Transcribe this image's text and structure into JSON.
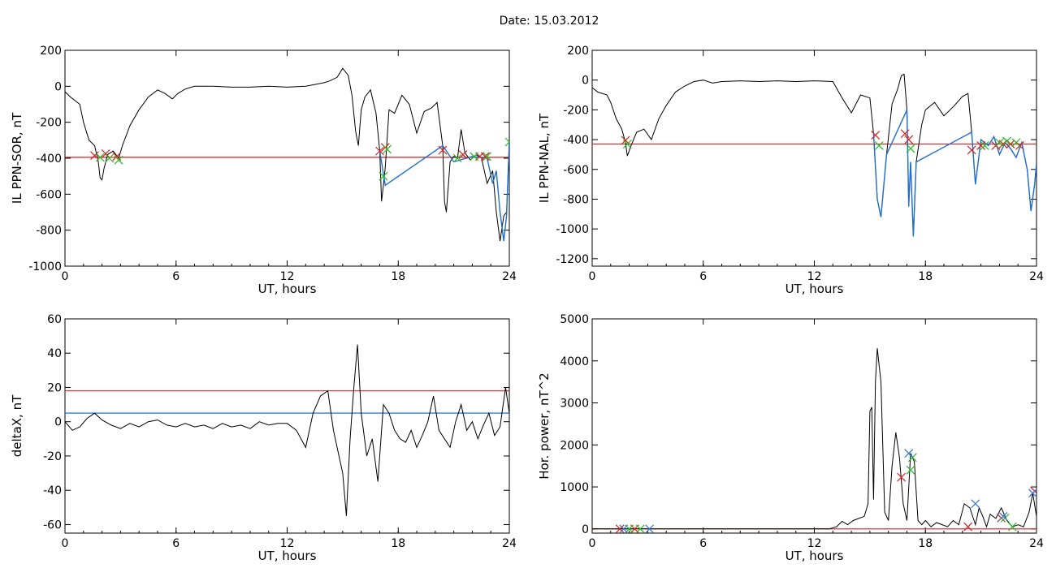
{
  "title": "Date:  15.03.2012",
  "colors": {
    "trace": "#000000",
    "threshold": "#d62020",
    "highlight": "#1f6fd0",
    "green_marker": "#22bb22",
    "blue_marker": "#3377dd"
  },
  "chart_data": [
    {
      "type": "line",
      "ylabel": "IL PPN-SOR, nT",
      "xlabel": "UT, hours",
      "xlim": [
        0,
        24
      ],
      "ylim": [
        -1000,
        200
      ],
      "xticks": [
        "0",
        "6",
        "12",
        "18",
        "24"
      ],
      "yticks": [
        "-1000",
        "-800",
        "-600",
        "-400",
        "-200",
        "0",
        "200"
      ],
      "threshold": {
        "value": -395,
        "color": "red"
      },
      "series": [
        {
          "x": [
            0,
            0.3,
            0.8,
            1.0,
            1.3,
            1.6,
            1.8,
            1.9,
            2.0,
            2.1,
            2.3,
            2.6,
            2.9,
            3.1,
            3.5,
            4.0,
            4.5,
            5.0,
            5.4,
            5.8,
            6.1,
            6.5,
            7.0,
            8.0,
            9.0,
            10.0,
            11.0,
            12.0,
            13.0,
            13.5,
            14.0,
            14.3,
            14.7,
            15.0,
            15.3,
            15.5,
            15.7,
            15.85,
            16.0,
            16.2,
            16.5,
            16.8,
            17.0,
            17.1,
            17.2,
            17.3,
            17.5,
            17.8,
            18.2,
            18.6,
            19.0,
            19.4,
            19.8,
            20.1,
            20.4,
            20.5,
            20.6,
            20.7,
            20.8,
            21.0,
            21.2,
            21.4,
            21.6,
            21.9,
            22.2,
            22.5,
            22.8,
            23.1,
            23.3,
            23.5,
            23.7,
            23.85,
            24.0
          ],
          "y": [
            -30,
            -60,
            -100,
            -200,
            -300,
            -330,
            -420,
            -510,
            -520,
            -460,
            -380,
            -360,
            -400,
            -330,
            -220,
            -130,
            -60,
            -20,
            -40,
            -70,
            -40,
            -15,
            0,
            0,
            -5,
            -5,
            0,
            -5,
            0,
            10,
            20,
            30,
            50,
            100,
            60,
            -50,
            -250,
            -330,
            -130,
            -60,
            -20,
            -150,
            -360,
            -640,
            -550,
            -450,
            -130,
            -150,
            -50,
            -100,
            -260,
            -140,
            -120,
            -90,
            -330,
            -640,
            -700,
            -560,
            -420,
            -390,
            -400,
            -240,
            -370,
            -410,
            -380,
            -400,
            -540,
            -470,
            -700,
            -860,
            -720,
            -700,
            -310
          ]
        }
      ],
      "highlight": {
        "x": [
          17.0,
          17.3,
          20.4,
          21.0,
          22.0,
          22.8,
          23.1,
          23.3,
          23.5,
          23.7,
          23.85,
          24.0
        ],
        "y": [
          -360,
          -550,
          -330,
          -420,
          -390,
          -400,
          -540,
          -470,
          -700,
          -860,
          -720,
          -310
        ]
      },
      "markers_red": {
        "x": [
          1.6,
          2.2,
          2.8,
          17.0,
          17.3,
          20.4,
          21.5,
          22.4,
          22.7
        ],
        "y": [
          -385,
          -375,
          -390,
          -360,
          -340,
          -355,
          -380,
          -390,
          -390
        ]
      },
      "markers_green": {
        "x": [
          1.9,
          2.4,
          2.9,
          17.2,
          17.4,
          21.2,
          22.1,
          22.8,
          24.0
        ],
        "y": [
          -395,
          -400,
          -410,
          -500,
          -350,
          -400,
          -390,
          -390,
          -310
        ]
      }
    },
    {
      "type": "line",
      "ylabel": "IL PPN-NAL, nT",
      "xlabel": "UT, hours",
      "xlim": [
        0,
        24
      ],
      "ylim": [
        -1250,
        200
      ],
      "xticks": [
        "0",
        "6",
        "12",
        "18",
        "24"
      ],
      "yticks": [
        "-1200",
        "-1000",
        "-800",
        "-600",
        "-400",
        "-200",
        "0",
        "200"
      ],
      "threshold": {
        "value": -430,
        "color": "red"
      },
      "series": [
        {
          "x": [
            0,
            0.3,
            0.8,
            1.0,
            1.3,
            1.6,
            1.8,
            1.9,
            2.1,
            2.4,
            2.8,
            3.2,
            3.6,
            4.0,
            4.5,
            5.0,
            5.5,
            6.0,
            6.5,
            7.0,
            8.0,
            9.0,
            10.0,
            11.0,
            12.0,
            13.0,
            13.5,
            14.0,
            14.5,
            15.0,
            15.2,
            15.4,
            15.6,
            15.9,
            16.2,
            16.5,
            16.7,
            16.85,
            17.0,
            17.1,
            17.2,
            17.35,
            17.5,
            17.8,
            18.0,
            18.5,
            19.0,
            19.5,
            20.0,
            20.3,
            20.5,
            20.7,
            21.0,
            21.4,
            21.7,
            22.0,
            22.3,
            22.6,
            22.9,
            23.2,
            23.5,
            23.7,
            23.9,
            24.0
          ],
          "y": [
            -50,
            -80,
            -100,
            -150,
            -260,
            -330,
            -420,
            -510,
            -440,
            -350,
            -330,
            -400,
            -260,
            -170,
            -80,
            -40,
            -10,
            0,
            -20,
            -10,
            -5,
            -10,
            -5,
            -10,
            -5,
            -10,
            -120,
            -220,
            -100,
            -120,
            -360,
            -800,
            -920,
            -500,
            -160,
            -60,
            30,
            40,
            -200,
            -850,
            -550,
            -1050,
            -550,
            -300,
            -200,
            -150,
            -240,
            -180,
            -110,
            -90,
            -350,
            -700,
            -400,
            -440,
            -380,
            -500,
            -420,
            -460,
            -520,
            -420,
            -600,
            -880,
            -700,
            -560
          ]
        }
      ],
      "highlight": {
        "x": [
          15.2,
          15.4,
          15.6,
          15.9,
          17.0,
          17.1,
          17.2,
          17.35,
          17.5,
          20.5,
          20.7,
          21.0,
          21.4,
          21.7,
          22.0,
          22.3,
          22.6,
          22.9,
          23.2,
          23.5,
          23.7,
          23.9,
          24.0
        ],
        "y": [
          -360,
          -800,
          -920,
          -500,
          -200,
          -850,
          -550,
          -1050,
          -550,
          -350,
          -700,
          -400,
          -440,
          -380,
          -500,
          -420,
          -460,
          -520,
          -420,
          -600,
          -880,
          -700,
          -560
        ]
      },
      "markers_red": {
        "x": [
          1.8,
          15.3,
          16.9,
          17.1,
          20.5,
          21.0,
          21.8,
          22.2,
          22.6,
          23.1
        ],
        "y": [
          -405,
          -370,
          -360,
          -400,
          -470,
          -440,
          -440,
          -430,
          -430,
          -440
        ]
      },
      "markers_green": {
        "x": [
          1.9,
          15.5,
          17.2,
          21.2,
          22.0,
          22.4,
          22.9
        ],
        "y": [
          -430,
          -440,
          -460,
          -440,
          -420,
          -410,
          -420
        ]
      }
    },
    {
      "type": "line",
      "ylabel": "deltaX, nT",
      "xlabel": "UT, hours",
      "xlim": [
        0,
        24
      ],
      "ylim": [
        -65,
        60
      ],
      "xticks": [
        "0",
        "6",
        "12",
        "18",
        "24"
      ],
      "yticks": [
        "-60",
        "-40",
        "-20",
        "0",
        "20",
        "40",
        "60"
      ],
      "threshold_red": {
        "value": 18
      },
      "threshold_blue": {
        "value": 5
      },
      "series": [
        {
          "x": [
            0,
            0.4,
            0.8,
            1.2,
            1.6,
            2.0,
            2.5,
            3.0,
            3.5,
            4.0,
            4.5,
            5.0,
            5.5,
            6.0,
            6.5,
            7.0,
            7.5,
            8.0,
            8.5,
            9.0,
            9.5,
            10.0,
            10.5,
            11.0,
            11.5,
            12.0,
            12.5,
            13.0,
            13.4,
            13.8,
            14.2,
            14.5,
            14.8,
            15.0,
            15.2,
            15.4,
            15.6,
            15.8,
            16.0,
            16.3,
            16.6,
            16.9,
            17.2,
            17.5,
            17.8,
            18.1,
            18.4,
            18.7,
            19.0,
            19.3,
            19.6,
            19.9,
            20.2,
            20.5,
            20.8,
            21.1,
            21.4,
            21.7,
            22.0,
            22.3,
            22.6,
            22.9,
            23.2,
            23.5,
            23.8,
            24.0
          ],
          "y": [
            0,
            -5,
            -3,
            2,
            5,
            1,
            -2,
            -4,
            -1,
            -3,
            0,
            1,
            -2,
            -3,
            -1,
            -3,
            -2,
            -4,
            -1,
            -3,
            -2,
            -4,
            0,
            -2,
            -1,
            -1,
            -5,
            -15,
            5,
            15,
            18,
            -5,
            -20,
            -30,
            -55,
            -10,
            20,
            45,
            5,
            -20,
            -10,
            -35,
            10,
            5,
            -5,
            -10,
            -12,
            -5,
            -15,
            -8,
            0,
            15,
            -5,
            -10,
            -15,
            0,
            10,
            -5,
            0,
            -10,
            -2,
            5,
            -8,
            -3,
            20,
            5
          ]
        }
      ]
    },
    {
      "type": "line",
      "ylabel": "Hor. power, nT^2",
      "xlabel": "UT, hours",
      "xlim": [
        0,
        24
      ],
      "ylim": [
        -100,
        5000
      ],
      "xticks": [
        "0",
        "6",
        "12",
        "18",
        "24"
      ],
      "yticks": [
        "0",
        "1000",
        "2000",
        "3000",
        "4000",
        "5000"
      ],
      "threshold": {
        "value": 0,
        "color": "red"
      },
      "series": [
        {
          "x": [
            0,
            2,
            4,
            6,
            8,
            10,
            12,
            12.8,
            13.2,
            13.5,
            13.8,
            14.1,
            14.4,
            14.7,
            14.9,
            15.0,
            15.1,
            15.2,
            15.3,
            15.4,
            15.6,
            15.8,
            16.0,
            16.2,
            16.4,
            16.6,
            16.8,
            17.0,
            17.2,
            17.4,
            17.6,
            17.8,
            18.0,
            18.3,
            18.6,
            18.9,
            19.2,
            19.5,
            19.8,
            20.1,
            20.4,
            20.7,
            20.9,
            21.1,
            21.3,
            21.5,
            21.8,
            22.1,
            22.4,
            22.7,
            23.0,
            23.3,
            23.6,
            23.8,
            24.0
          ],
          "y": [
            0,
            0,
            0,
            0,
            0,
            0,
            0,
            0,
            50,
            180,
            100,
            200,
            250,
            300,
            600,
            2800,
            2900,
            700,
            3500,
            4300,
            3500,
            400,
            200,
            1500,
            2300,
            1700,
            600,
            200,
            1800,
            1600,
            200,
            100,
            200,
            50,
            150,
            100,
            50,
            200,
            100,
            600,
            500,
            100,
            500,
            300,
            50,
            350,
            250,
            500,
            200,
            50,
            100,
            50,
            400,
            850,
            300
          ]
        }
      ],
      "markers_red": {
        "x": [
          1.5,
          2.3,
          16.7,
          20.3,
          22.1,
          23.9
        ],
        "y": [
          0,
          0,
          1230,
          50,
          260,
          900
        ]
      },
      "markers_green": {
        "x": [
          2.0,
          2.6,
          17.2,
          17.3,
          22.3,
          22.7
        ],
        "y": [
          0,
          0,
          1400,
          1700,
          260,
          50
        ]
      },
      "markers_blue": {
        "x": [
          1.7,
          3.1,
          17.1,
          20.7,
          22.2,
          23.8
        ],
        "y": [
          0,
          0,
          1800,
          600,
          300,
          850
        ]
      }
    }
  ]
}
